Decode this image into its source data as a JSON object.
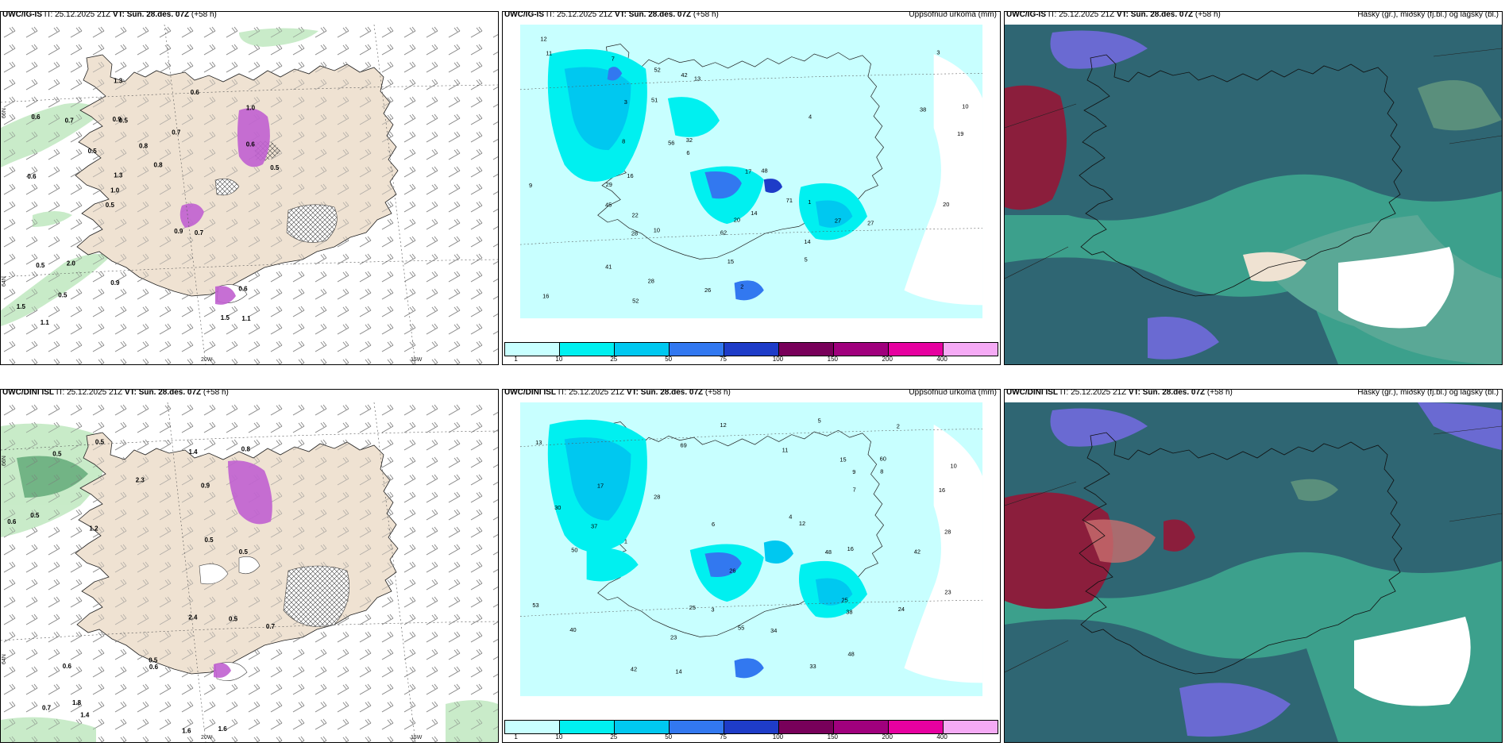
{
  "panels": {
    "p1": {
      "model": "UWC/IG-IS",
      "it": "IT: 25.12.2025 21Z",
      "vt_label": "VT:",
      "vt": "Sun. 28.des. 07Z",
      "lead": "(+58 h)",
      "right": ""
    },
    "p2": {
      "model": "UWC/IG-IS",
      "it": "IT: 25.12.2025 21Z",
      "vt_label": "VT:",
      "vt": "Sun. 28.des. 07Z",
      "lead": "(+58 h)",
      "right": "Uppsöfnuð úrkoma (mm)"
    },
    "p3": {
      "model": "UWC/IG-IS",
      "it": "IT: 25.12.2025 21Z",
      "vt_label": "VT:",
      "vt": "Sun. 28.des. 07Z",
      "lead": "(+58 h)",
      "right": "Háský (gr.), miðský (fj.bl.) og lágský (bl.)"
    },
    "p4": {
      "model": "UWC/DINI ISL",
      "it": "IT: 25.12.2025 21Z",
      "vt_label": "VT:",
      "vt": "Sun. 28.des. 07Z",
      "lead": "(+58 h)",
      "right": ""
    },
    "p5": {
      "model": "UWC/DINI ISL",
      "it": "IT: 25.12.2025 21Z",
      "vt_label": "VT:",
      "vt": "Sun. 28.des. 07Z",
      "lead": "(+58 h)",
      "right": "Uppsöfnuð úrkoma (mm)"
    },
    "p6": {
      "model": "UWC/DINI ISL",
      "it": "IT: 25.12.2025 21Z",
      "vt_label": "VT:",
      "vt": "Sun. 28.des. 07Z",
      "lead": "(+58 h)",
      "right": "Háský (gr.), miðský (fj.bl.) og lágský (bl.)"
    }
  },
  "axes": {
    "lon1": "20W",
    "lon2": "15W",
    "lat1": "66N",
    "lat2": "64N"
  },
  "colorbar": {
    "ticks": [
      "1",
      "10",
      "25",
      "50",
      "75",
      "100",
      "150",
      "200",
      "400"
    ],
    "colors": [
      "#c8ffff",
      "#00f0f0",
      "#00c8f0",
      "#3278f0",
      "#1e3cc8",
      "#78005a",
      "#a0007d",
      "#e600a0",
      "#f5aaf5"
    ]
  },
  "colors": {
    "land": "#efe2d2",
    "ocean_precip": "#c8ffff",
    "snow": "#dcf0dc",
    "cloud_dark": "#2f6673",
    "cloud_teal": "#3ca08c",
    "cloud_purple": "#6a6ad2",
    "cloud_maroon": "#8b1e3c"
  },
  "wind_labels_top": [
    "1.1",
    "0.6",
    "1.0",
    "0.5",
    "0.7",
    "1.1",
    "0.9",
    "0.8",
    "0.5",
    "0.5",
    "1.5",
    "0.5",
    "0.5",
    "0.8",
    "0.7",
    "0.6",
    "1.3",
    "0.5",
    "0.9",
    "0.6",
    "1.0",
    "0.9",
    "1.3",
    "0.7",
    "0.6",
    "2.0",
    "1.5",
    "0.6"
  ],
  "wind_labels_bottom": [
    "0.7",
    "1.6",
    "0.6",
    "0.7",
    "0.5",
    "1.2",
    "0.5",
    "0.9",
    "1.6",
    "0.5",
    "2.4",
    "0.8",
    "0.6",
    "0.5",
    "1.4",
    "0.5",
    "0.6",
    "1.8",
    "1.4",
    "2.3",
    "0.5",
    "0.5"
  ],
  "precip_labels_top": [
    "11",
    "12",
    "9",
    "3",
    "10",
    "14",
    "13",
    "10",
    "16",
    "27",
    "28",
    "48",
    "52",
    "45",
    "20",
    "56",
    "62",
    "41",
    "51",
    "32",
    "19",
    "15",
    "28",
    "16",
    "29",
    "14",
    "22",
    "27",
    "26",
    "42",
    "71",
    "52",
    "38",
    "20",
    "17",
    "8",
    "7",
    "6",
    "5",
    "4",
    "3",
    "2",
    "1"
  ],
  "precip_labels_bottom": [
    "15",
    "12",
    "9",
    "17",
    "16",
    "37",
    "55",
    "48",
    "33",
    "13",
    "12",
    "11",
    "50",
    "42",
    "28",
    "30",
    "60",
    "40",
    "42",
    "25",
    "14",
    "23",
    "28",
    "69",
    "34",
    "24",
    "26",
    "25",
    "48",
    "53",
    "38",
    "16",
    "23",
    "10",
    "8",
    "7",
    "6",
    "5",
    "4",
    "3",
    "2",
    "1"
  ]
}
